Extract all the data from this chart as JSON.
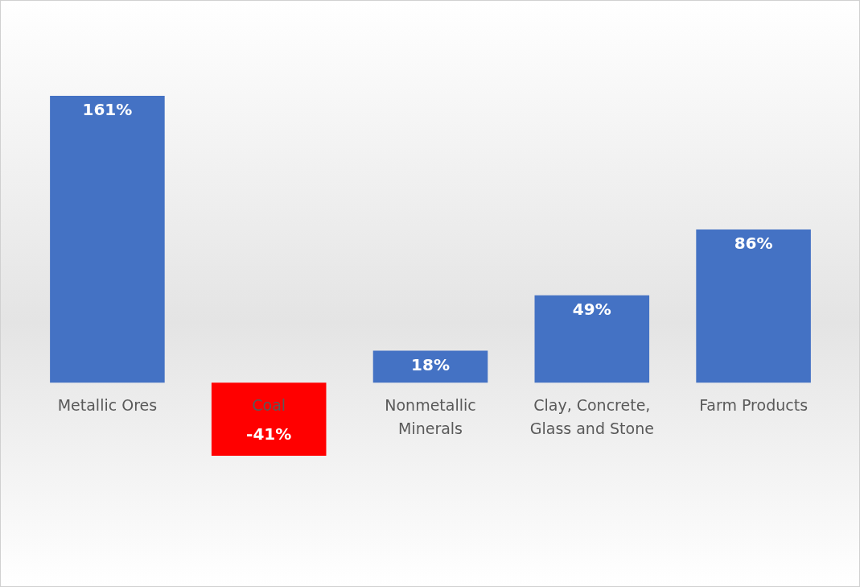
{
  "chart_data": {
    "type": "bar",
    "categories": [
      "Metallic Ores",
      "Coal",
      "Nonmetallic Minerals",
      "Clay, Concrete, Glass and Stone",
      "Farm Products"
    ],
    "values": [
      161,
      -41,
      18,
      49,
      86
    ],
    "colors": [
      "#4472c4",
      "#ff0000",
      "#4472c4",
      "#4472c4",
      "#4472c4"
    ],
    "value_labels": [
      "161%",
      "-41%",
      "18%",
      "49%",
      "86%"
    ],
    "tick_labels": false,
    "legend": false
  }
}
